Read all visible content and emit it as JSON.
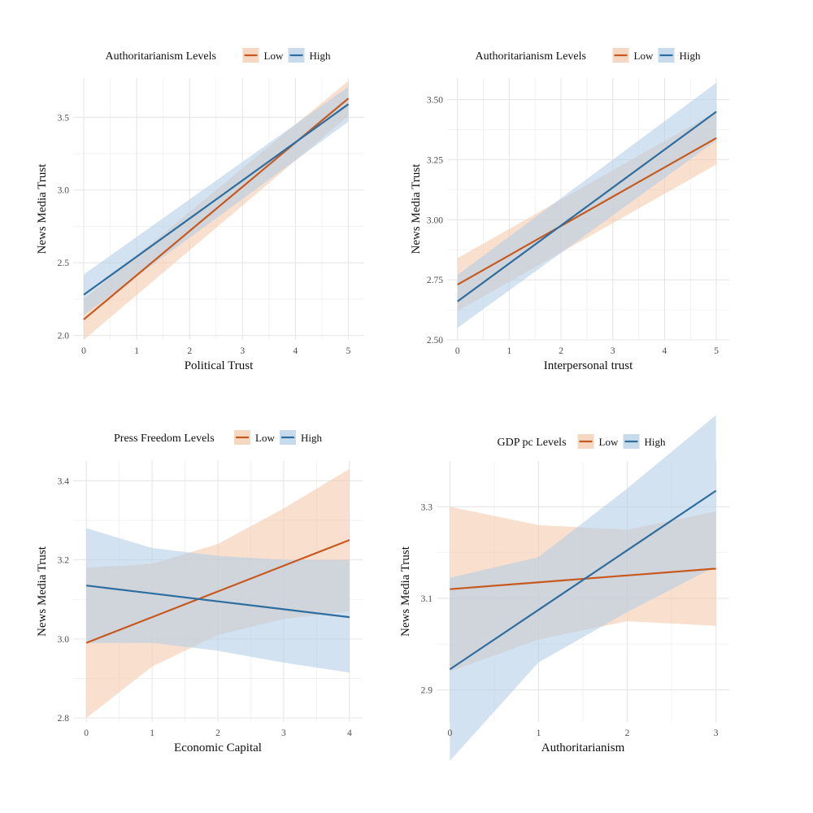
{
  "chart_data": [
    {
      "type": "line",
      "legend": {
        "title": "Authoritarianism Levels",
        "labels": [
          "Low",
          "High"
        ],
        "position": "top"
      },
      "xlabel": "Political Trust",
      "ylabel": "News Media Trust",
      "xlim": [
        -0.2,
        5.3
      ],
      "ylim": [
        1.97,
        3.77
      ],
      "xticks": [
        0,
        1,
        2,
        3,
        4,
        5
      ],
      "xtick_labels": [
        "0",
        "1",
        "2",
        "3",
        "4",
        "5"
      ],
      "yticks": [
        2.0,
        2.5,
        3.0,
        3.5
      ],
      "ytick_labels": [
        "2.0",
        "2.5",
        "3.0",
        "3.5"
      ],
      "series": [
        {
          "name": "Low",
          "x": [
            0,
            5
          ],
          "y": [
            2.11,
            3.63
          ],
          "ci_lower": [
            1.97,
            3.51
          ],
          "ci_upper": [
            2.25,
            3.75
          ]
        },
        {
          "name": "High",
          "x": [
            0,
            5
          ],
          "y": [
            2.28,
            3.59
          ],
          "ci_lower": [
            2.14,
            3.47
          ],
          "ci_upper": [
            2.42,
            3.71
          ]
        }
      ]
    },
    {
      "type": "line",
      "legend": {
        "title": "Authoritarianism Levels",
        "labels": [
          "Low",
          "High"
        ],
        "position": "top"
      },
      "xlabel": "Interpersonal trust",
      "ylabel": "News Media Trust",
      "xlim": [
        -0.2,
        5.25
      ],
      "ylim": [
        2.5,
        3.59
      ],
      "xticks": [
        0,
        1,
        2,
        3,
        4,
        5
      ],
      "xtick_labels": [
        "0",
        "1",
        "2",
        "3",
        "4",
        "5"
      ],
      "yticks": [
        2.5,
        2.75,
        3.0,
        3.25,
        3.5
      ],
      "ytick_labels": [
        "2.50",
        "2.75",
        "3.00",
        "3.25",
        "3.50"
      ],
      "series": [
        {
          "name": "Low",
          "x": [
            0,
            5
          ],
          "y": [
            2.73,
            3.34
          ],
          "ci_lower": [
            2.62,
            3.23
          ],
          "ci_upper": [
            2.84,
            3.45
          ]
        },
        {
          "name": "High",
          "x": [
            0,
            5
          ],
          "y": [
            2.66,
            3.45
          ],
          "ci_lower": [
            2.55,
            3.33
          ],
          "ci_upper": [
            2.77,
            3.57
          ]
        }
      ]
    },
    {
      "type": "line",
      "legend": {
        "title": "Press Freedom Levels",
        "labels": [
          "Low",
          "High"
        ],
        "position": "top"
      },
      "xlabel": "Economic Capital",
      "ylabel": "News Media Trust",
      "xlim": [
        -0.2,
        4.2
      ],
      "ylim": [
        2.79,
        3.45
      ],
      "xticks": [
        0,
        1,
        2,
        3,
        4
      ],
      "xtick_labels": [
        "0",
        "1",
        "2",
        "3",
        "4"
      ],
      "yticks": [
        2.8,
        3.0,
        3.2,
        3.4
      ],
      "ytick_labels": [
        "2.8",
        "3.0",
        "3.2",
        "3.4"
      ],
      "series": [
        {
          "name": "Low",
          "x": [
            0,
            1,
            2,
            3,
            4
          ],
          "y": [
            2.99,
            3.055,
            3.12,
            3.185,
            3.25
          ],
          "ci_lower": [
            2.8,
            2.93,
            3.01,
            3.05,
            3.07
          ],
          "ci_upper": [
            3.18,
            3.19,
            3.24,
            3.33,
            3.43
          ]
        },
        {
          "name": "High",
          "x": [
            0,
            1,
            2,
            3,
            4
          ],
          "y": [
            3.135,
            3.115,
            3.095,
            3.075,
            3.055
          ],
          "ci_lower": [
            2.99,
            2.99,
            2.97,
            2.94,
            2.915
          ],
          "ci_upper": [
            3.28,
            3.23,
            3.21,
            3.2,
            3.2
          ]
        }
      ]
    },
    {
      "type": "line",
      "legend": {
        "title": "GDP pc Levels",
        "labels": [
          "Low",
          "High"
        ],
        "position": "top"
      },
      "xlabel": "Authoritarianism",
      "ylabel": "News Media Trust",
      "xlim": [
        -0.15,
        3.15
      ],
      "ylim": [
        2.83,
        3.4
      ],
      "xticks": [
        0,
        1,
        2,
        3
      ],
      "xtick_labels": [
        "0",
        "1",
        "2",
        "3"
      ],
      "yticks": [
        2.9,
        3.1,
        3.3
      ],
      "ytick_labels": [
        "2.9",
        "3.1",
        "3.3"
      ],
      "series": [
        {
          "name": "Low",
          "x": [
            0,
            1,
            2,
            3
          ],
          "y": [
            3.12,
            3.135,
            3.15,
            3.165
          ],
          "ci_lower": [
            2.94,
            3.01,
            3.05,
            3.04
          ],
          "ci_upper": [
            3.3,
            3.26,
            3.25,
            3.29
          ]
        },
        {
          "name": "High",
          "x": [
            0,
            1,
            2,
            3
          ],
          "y": [
            2.945,
            3.075,
            3.205,
            3.335
          ],
          "ci_lower": [
            2.745,
            2.96,
            3.07,
            3.17
          ],
          "ci_upper": [
            3.145,
            3.19,
            3.34,
            3.5
          ]
        }
      ]
    }
  ],
  "colors": {
    "low_line": "#c8591e",
    "low_band": "#f3c9ae",
    "high_line": "#2d6d9f",
    "high_band": "#b6cfe6",
    "grid_major": "#e6e6e6",
    "grid_minor": "#f2f2f2"
  }
}
